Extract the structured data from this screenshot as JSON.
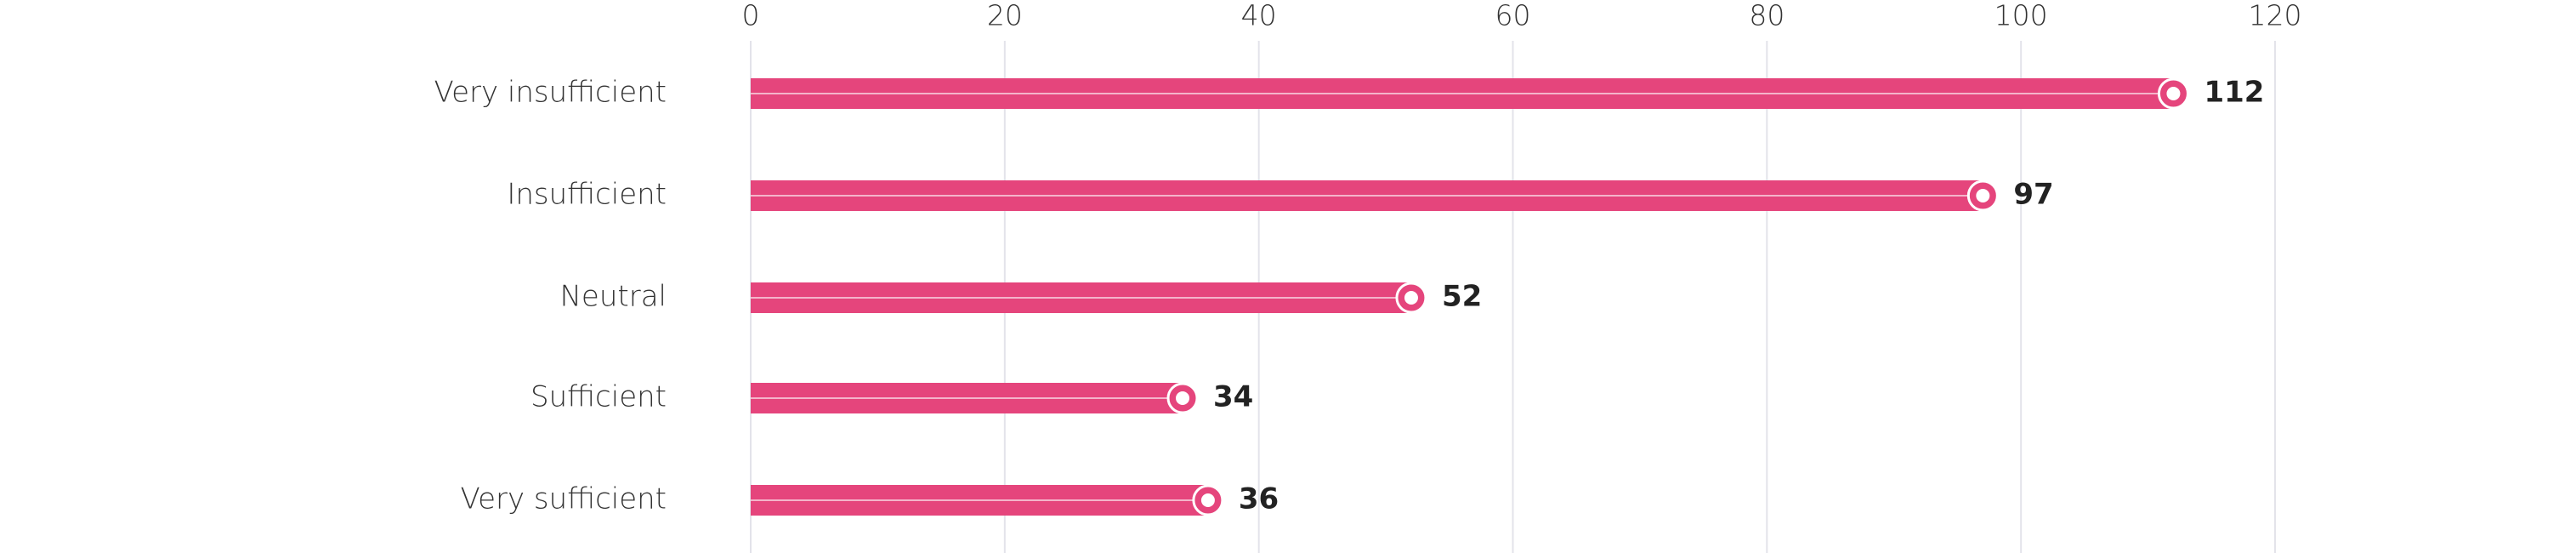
{
  "chart_data": {
    "type": "bar",
    "orientation": "horizontal",
    "categories": [
      "Very insufficient",
      "Insufficient",
      "Neutral",
      "Sufficient",
      "Very sufficient"
    ],
    "values": [
      112,
      97,
      52,
      34,
      36
    ],
    "color": "#e5457c",
    "xlim": [
      0,
      120
    ],
    "xticks": [
      0,
      20,
      40,
      60,
      80,
      100,
      120
    ],
    "grid": true
  }
}
